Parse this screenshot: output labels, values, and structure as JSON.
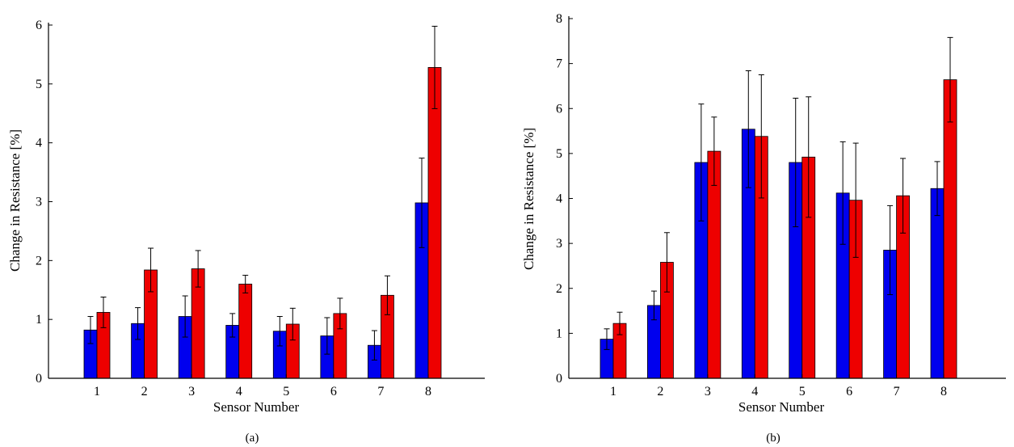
{
  "colors": {
    "series_a": "#0000ee",
    "series_b": "#ee0000",
    "axis": "#000000",
    "errorbar": "#000000"
  },
  "chart_data": [
    {
      "type": "bar",
      "caption": "(a)",
      "xlabel": "Sensor Number",
      "ylabel": "Change in Resistance [%]",
      "ylim": [
        0,
        6
      ],
      "yticks": [
        "0",
        "1",
        "2",
        "3",
        "4",
        "5",
        "6"
      ],
      "categories": [
        "1",
        "2",
        "3",
        "4",
        "5",
        "6",
        "7",
        "8"
      ],
      "grid": false,
      "series": [
        {
          "color": "blue",
          "values": [
            0.82,
            0.93,
            1.05,
            0.9,
            0.8,
            0.72,
            0.56,
            2.98
          ],
          "error": [
            0.23,
            0.27,
            0.35,
            0.2,
            0.25,
            0.31,
            0.25,
            0.76
          ]
        },
        {
          "color": "red",
          "values": [
            1.12,
            1.84,
            1.86,
            1.6,
            0.92,
            1.1,
            1.41,
            5.28
          ],
          "error": [
            0.26,
            0.37,
            0.31,
            0.15,
            0.27,
            0.26,
            0.33,
            0.7
          ]
        }
      ]
    },
    {
      "type": "bar",
      "caption": "(b)",
      "xlabel": "Sensor Number",
      "ylabel": "Change in Resistance [%]",
      "ylim": [
        0,
        8
      ],
      "yticks": [
        "0",
        "1",
        "2",
        "3",
        "4",
        "5",
        "6",
        "7",
        "8"
      ],
      "categories": [
        "1",
        "2",
        "3",
        "4",
        "5",
        "6",
        "7",
        "8"
      ],
      "grid": false,
      "series": [
        {
          "color": "blue",
          "values": [
            0.87,
            1.62,
            4.8,
            5.54,
            4.8,
            4.12,
            2.85,
            4.22
          ],
          "error": [
            0.23,
            0.32,
            1.3,
            1.3,
            1.43,
            1.14,
            0.99,
            0.6
          ]
        },
        {
          "color": "red",
          "values": [
            1.22,
            2.58,
            5.05,
            5.38,
            4.92,
            3.96,
            4.06,
            6.64
          ],
          "error": [
            0.25,
            0.66,
            0.76,
            1.37,
            1.34,
            1.27,
            0.83,
            0.94
          ]
        }
      ]
    }
  ]
}
